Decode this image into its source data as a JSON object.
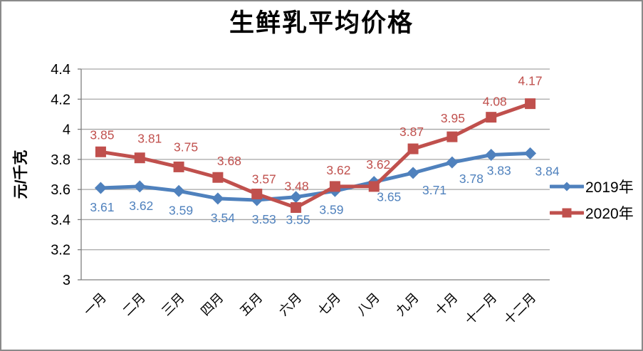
{
  "title": "生鲜乳平均价格",
  "y_axis_label": "元/千克",
  "colors": {
    "series_2019": "#4F81BD",
    "series_2020": "#C0504D",
    "gridline": "#A6A6A6",
    "axis": "#808080",
    "frame_border": "#8A8A8A",
    "text": "#000000"
  },
  "chart_data": {
    "type": "line",
    "title": "生鲜乳平均价格",
    "ylabel": "元/千克",
    "xlabel": "",
    "categories": [
      "一月",
      "二月",
      "三月",
      "四月",
      "五月",
      "六月",
      "七月",
      "八月",
      "九月",
      "十月",
      "十一月",
      "十二月"
    ],
    "series": [
      {
        "name": "2019年",
        "color": "#4F81BD",
        "marker": "diamond",
        "values": [
          3.61,
          3.62,
          3.59,
          3.54,
          3.53,
          3.55,
          3.59,
          3.65,
          3.71,
          3.78,
          3.83,
          3.84
        ]
      },
      {
        "name": "2020年",
        "color": "#C0504D",
        "marker": "square",
        "values": [
          3.85,
          3.81,
          3.75,
          3.68,
          3.57,
          3.48,
          3.62,
          3.62,
          3.87,
          3.95,
          4.08,
          4.17
        ]
      }
    ],
    "ylim": [
      3,
      4.4
    ],
    "yticks": [
      3,
      3.2,
      3.4,
      3.6,
      3.8,
      4,
      4.2,
      4.4
    ],
    "grid": true,
    "data_labels": true,
    "legend_position": "right"
  }
}
